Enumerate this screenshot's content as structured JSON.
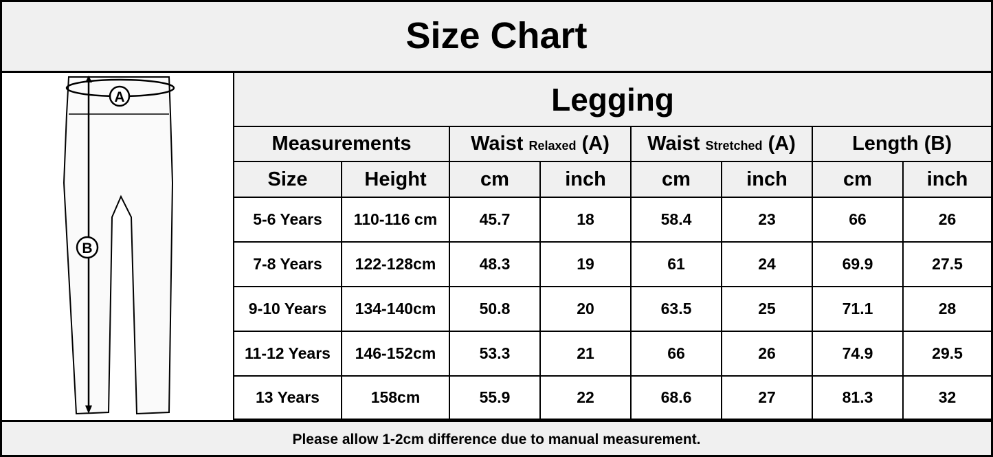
{
  "title": "Size Chart",
  "product": "Legging",
  "diagram": {
    "labels": [
      "A",
      "B"
    ]
  },
  "header_groups": [
    {
      "label": "Measurements"
    },
    {
      "label": "Waist",
      "sub": "Relaxed",
      "suffix": "(A)"
    },
    {
      "label": "Waist",
      "sub": "Stretched",
      "suffix": "(A)"
    },
    {
      "label": "Length (B)"
    }
  ],
  "columns": [
    "Size",
    "Height",
    "cm",
    "inch",
    "cm",
    "inch",
    "cm",
    "inch"
  ],
  "rows": [
    [
      "5-6 Years",
      "110-116 cm",
      "45.7",
      "18",
      "58.4",
      "23",
      "66",
      "26"
    ],
    [
      "7-8 Years",
      "122-128cm",
      "48.3",
      "19",
      "61",
      "24",
      "69.9",
      "27.5"
    ],
    [
      "9-10 Years",
      "134-140cm",
      "50.8",
      "20",
      "63.5",
      "25",
      "71.1",
      "28"
    ],
    [
      "11-12 Years",
      "146-152cm",
      "53.3",
      "21",
      "66",
      "26",
      "74.9",
      "29.5"
    ],
    [
      "13 Years",
      "158cm",
      "55.9",
      "22",
      "68.6",
      "27",
      "81.3",
      "32"
    ]
  ],
  "footer": "Please allow 1-2cm difference due to manual measurement."
}
